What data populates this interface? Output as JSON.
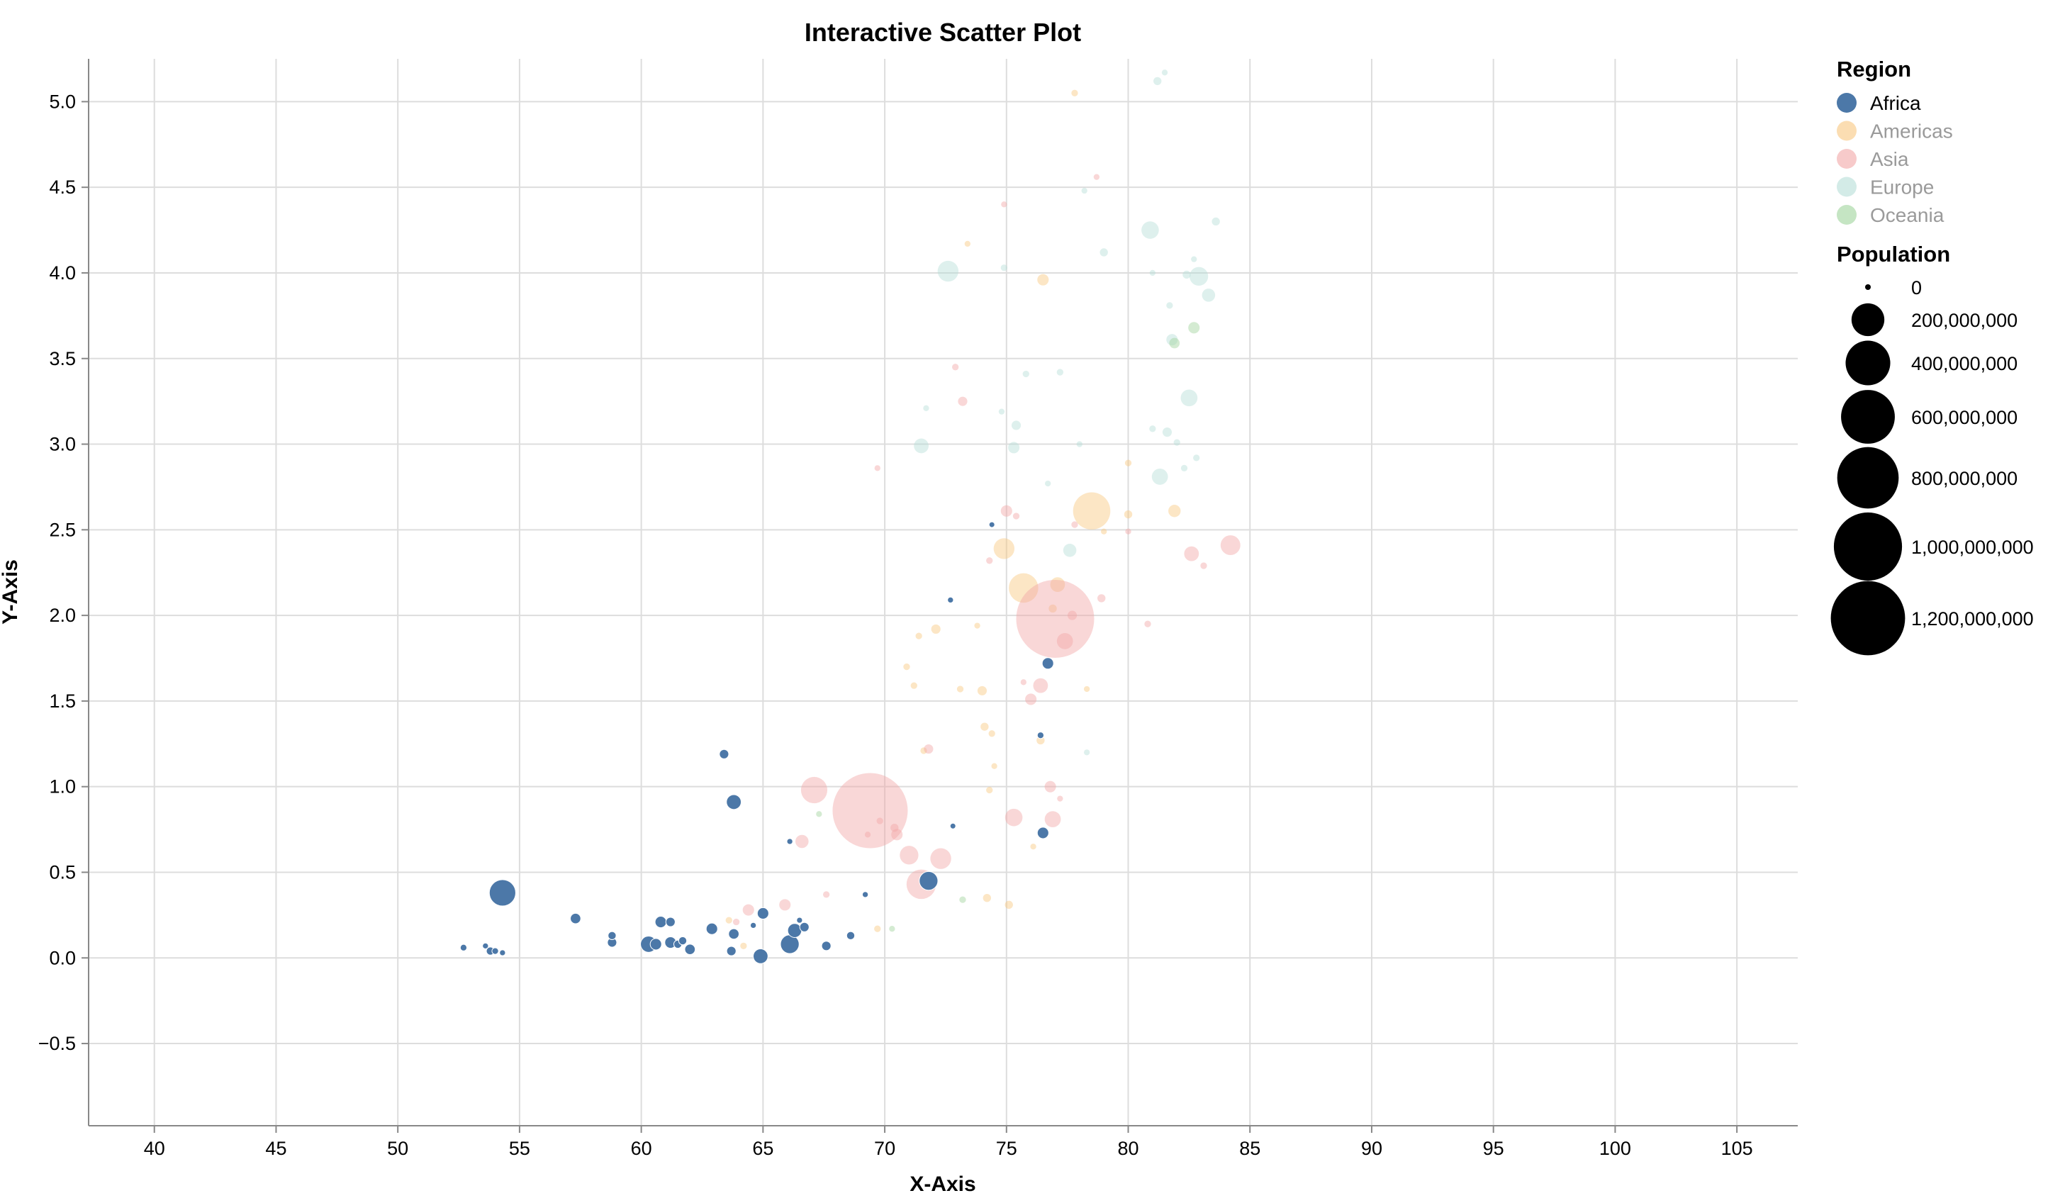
{
  "chart_data": {
    "type": "scatter",
    "title": "Interactive Scatter Plot",
    "xlabel": "X-Axis",
    "ylabel": "Y-Axis",
    "xlim": [
      37.3,
      107.5
    ],
    "ylim": [
      -0.98,
      5.25
    ],
    "xticks": [
      40,
      45,
      50,
      55,
      60,
      65,
      70,
      75,
      80,
      85,
      90,
      95,
      100,
      105
    ],
    "yticks": [
      -0.5,
      0.0,
      0.5,
      1.0,
      1.5,
      2.0,
      2.5,
      3.0,
      3.5,
      4.0,
      4.5,
      5.0
    ],
    "xtick_labels": [
      "40",
      "45",
      "50",
      "55",
      "60",
      "65",
      "70",
      "75",
      "80",
      "85",
      "90",
      "95",
      "100",
      "105"
    ],
    "ytick_labels": [
      "−0.5",
      "0.0",
      "0.5",
      "1.0",
      "1.5",
      "2.0",
      "2.5",
      "3.0",
      "3.5",
      "4.0",
      "4.5",
      "5.0"
    ],
    "grid": true,
    "legend": {
      "position": "right",
      "region_title": "Region",
      "regions": [
        {
          "name": "Africa",
          "color": "#4c78a8",
          "selected": true
        },
        {
          "name": "Americas",
          "color": "#f9c77f",
          "selected": false
        },
        {
          "name": "Asia",
          "color": "#f2a6a6",
          "selected": false
        },
        {
          "name": "Europe",
          "color": "#b5ddd7",
          "selected": false
        },
        {
          "name": "Oceania",
          "color": "#9fd39b",
          "selected": false
        }
      ],
      "size_title": "Population",
      "sizes": [
        {
          "label": "0",
          "value": 0
        },
        {
          "label": "200,000,000",
          "value": 200000000
        },
        {
          "label": "400,000,000",
          "value": 400000000
        },
        {
          "label": "600,000,000",
          "value": 600000000
        },
        {
          "label": "800,000,000",
          "value": 800000000
        },
        {
          "label": "1,000,000,000",
          "value": 1000000000
        },
        {
          "label": "1,200,000,000",
          "value": 1200000000
        }
      ]
    },
    "series": [
      {
        "name": "Africa",
        "points": [
          [
            52.7,
            0.06,
            10000000
          ],
          [
            53.6,
            0.07,
            8000000
          ],
          [
            53.8,
            0.04,
            15000000
          ],
          [
            54.0,
            0.04,
            10000000
          ],
          [
            54.3,
            0.03,
            8000000
          ],
          [
            54.3,
            0.38,
            160000000
          ],
          [
            57.3,
            0.23,
            25000000
          ],
          [
            58.8,
            0.13,
            15000000
          ],
          [
            58.8,
            0.09,
            20000000
          ],
          [
            60.3,
            0.08,
            60000000
          ],
          [
            60.6,
            0.08,
            30000000
          ],
          [
            60.8,
            0.21,
            30000000
          ],
          [
            61.2,
            0.21,
            20000000
          ],
          [
            61.2,
            0.09,
            30000000
          ],
          [
            61.5,
            0.08,
            15000000
          ],
          [
            61.7,
            0.1,
            15000000
          ],
          [
            62.0,
            0.05,
            25000000
          ],
          [
            62.9,
            0.17,
            30000000
          ],
          [
            63.4,
            1.19,
            20000000
          ],
          [
            63.7,
            0.04,
            20000000
          ],
          [
            63.8,
            0.14,
            25000000
          ],
          [
            63.8,
            0.91,
            50000000
          ],
          [
            64.6,
            0.19,
            8000000
          ],
          [
            65.0,
            0.26,
            30000000
          ],
          [
            64.9,
            0.01,
            50000000
          ],
          [
            66.1,
            0.68,
            8000000
          ],
          [
            66.1,
            0.08,
            80000000
          ],
          [
            66.3,
            0.16,
            45000000
          ],
          [
            66.5,
            0.22,
            8000000
          ],
          [
            66.7,
            0.18,
            20000000
          ],
          [
            67.6,
            0.07,
            20000000
          ],
          [
            68.6,
            0.13,
            15000000
          ],
          [
            69.2,
            0.37,
            8000000
          ],
          [
            71.8,
            0.45,
            80000000
          ],
          [
            72.7,
            2.09,
            8000000
          ],
          [
            72.8,
            0.77,
            5000000
          ],
          [
            74.4,
            2.53,
            5000000
          ],
          [
            76.4,
            1.3,
            10000000
          ],
          [
            76.5,
            0.73,
            30000000
          ],
          [
            76.7,
            1.72,
            30000000
          ]
        ]
      },
      {
        "name": "Americas",
        "points": [
          [
            63.6,
            0.22,
            10000000
          ],
          [
            64.2,
            0.07,
            10000000
          ],
          [
            69.7,
            0.17,
            10000000
          ],
          [
            70.9,
            1.7,
            10000000
          ],
          [
            71.2,
            1.59,
            10000000
          ],
          [
            71.4,
            1.88,
            10000000
          ],
          [
            71.6,
            1.21,
            10000000
          ],
          [
            72.1,
            1.92,
            20000000
          ],
          [
            73.1,
            1.57,
            10000000
          ],
          [
            73.4,
            4.17,
            8000000
          ],
          [
            73.8,
            1.94,
            8000000
          ],
          [
            74.0,
            1.56,
            20000000
          ],
          [
            74.1,
            1.35,
            15000000
          ],
          [
            74.2,
            0.35,
            15000000
          ],
          [
            74.3,
            0.98,
            10000000
          ],
          [
            74.4,
            1.31,
            10000000
          ],
          [
            74.5,
            1.12,
            8000000
          ],
          [
            74.9,
            2.39,
            100000000
          ],
          [
            75.1,
            0.31,
            15000000
          ],
          [
            75.7,
            2.16,
            200000000
          ],
          [
            76.1,
            0.65,
            8000000
          ],
          [
            76.4,
            1.27,
            15000000
          ],
          [
            76.5,
            3.96,
            30000000
          ],
          [
            76.9,
            2.04,
            15000000
          ],
          [
            77.1,
            2.18,
            50000000
          ],
          [
            77.8,
            5.05,
            10000000
          ],
          [
            78.3,
            1.57,
            8000000
          ],
          [
            78.5,
            2.61,
            320000000
          ],
          [
            79.0,
            2.49,
            8000000
          ],
          [
            80.0,
            2.59,
            15000000
          ],
          [
            80.0,
            2.89,
            10000000
          ],
          [
            81.9,
            2.61,
            35000000
          ]
        ]
      },
      {
        "name": "Asia",
        "points": [
          [
            63.9,
            0.21,
            10000000
          ],
          [
            64.4,
            0.28,
            30000000
          ],
          [
            65.9,
            0.31,
            30000000
          ],
          [
            66.6,
            0.68,
            40000000
          ],
          [
            67.1,
            0.98,
            160000000
          ],
          [
            67.6,
            0.37,
            10000000
          ],
          [
            69.3,
            0.72,
            8000000
          ],
          [
            69.4,
            0.86,
            1300000000
          ],
          [
            69.7,
            2.86,
            8000000
          ],
          [
            69.8,
            0.8,
            10000000
          ],
          [
            70.4,
            0.76,
            15000000
          ],
          [
            70.5,
            0.72,
            30000000
          ],
          [
            71.0,
            0.6,
            80000000
          ],
          [
            71.5,
            0.43,
            200000000
          ],
          [
            71.8,
            1.22,
            20000000
          ],
          [
            72.3,
            0.58,
            100000000
          ],
          [
            72.9,
            3.45,
            10000000
          ],
          [
            73.2,
            3.25,
            20000000
          ],
          [
            74.3,
            2.32,
            10000000
          ],
          [
            74.9,
            4.4,
            8000000
          ],
          [
            75.0,
            2.61,
            30000000
          ],
          [
            75.3,
            0.82,
            70000000
          ],
          [
            75.4,
            2.58,
            10000000
          ],
          [
            75.7,
            1.61,
            8000000
          ],
          [
            76.0,
            1.51,
            30000000
          ],
          [
            76.4,
            1.59,
            50000000
          ],
          [
            76.8,
            1.0,
            30000000
          ],
          [
            76.9,
            0.81,
            60000000
          ],
          [
            77.0,
            1.98,
            1400000000
          ],
          [
            77.2,
            0.93,
            8000000
          ],
          [
            77.4,
            1.85,
            60000000
          ],
          [
            77.7,
            2.0,
            20000000
          ],
          [
            77.8,
            2.53,
            10000000
          ],
          [
            78.7,
            4.56,
            8000000
          ],
          [
            78.9,
            2.1,
            15000000
          ],
          [
            80.0,
            2.49,
            8000000
          ],
          [
            80.8,
            1.95,
            10000000
          ],
          [
            82.6,
            2.36,
            50000000
          ],
          [
            83.1,
            2.29,
            10000000
          ],
          [
            84.2,
            2.41,
            90000000
          ]
        ]
      },
      {
        "name": "Europe",
        "points": [
          [
            71.5,
            2.99,
            50000000
          ],
          [
            71.7,
            3.21,
            8000000
          ],
          [
            72.6,
            4.01,
            100000000
          ],
          [
            74.8,
            3.19,
            8000000
          ],
          [
            74.9,
            4.03,
            10000000
          ],
          [
            75.3,
            2.98,
            30000000
          ],
          [
            75.4,
            3.11,
            20000000
          ],
          [
            75.8,
            3.41,
            10000000
          ],
          [
            76.7,
            2.77,
            8000000
          ],
          [
            77.2,
            3.42,
            10000000
          ],
          [
            77.6,
            2.38,
            40000000
          ],
          [
            78.0,
            3.0,
            8000000
          ],
          [
            78.2,
            4.48,
            8000000
          ],
          [
            78.3,
            1.2,
            8000000
          ],
          [
            79.0,
            4.12,
            15000000
          ],
          [
            80.9,
            4.25,
            70000000
          ],
          [
            81.0,
            3.09,
            10000000
          ],
          [
            81.0,
            4.0,
            8000000
          ],
          [
            81.2,
            5.12,
            15000000
          ],
          [
            81.3,
            2.81,
            60000000
          ],
          [
            81.5,
            5.17,
            8000000
          ],
          [
            81.6,
            3.07,
            20000000
          ],
          [
            81.7,
            3.81,
            10000000
          ],
          [
            81.8,
            3.61,
            30000000
          ],
          [
            82.0,
            3.01,
            10000000
          ],
          [
            82.3,
            2.86,
            10000000
          ],
          [
            82.4,
            3.99,
            15000000
          ],
          [
            82.5,
            3.27,
            65000000
          ],
          [
            82.7,
            4.08,
            8000000
          ],
          [
            82.8,
            2.92,
            10000000
          ],
          [
            82.9,
            3.98,
            80000000
          ],
          [
            83.3,
            3.87,
            40000000
          ],
          [
            83.6,
            4.3,
            15000000
          ]
        ]
      },
      {
        "name": "Oceania",
        "points": [
          [
            67.3,
            0.84,
            8000000
          ],
          [
            70.3,
            0.17,
            8000000
          ],
          [
            73.2,
            0.34,
            10000000
          ],
          [
            81.9,
            3.59,
            25000000
          ],
          [
            82.7,
            3.68,
            30000000
          ]
        ]
      }
    ]
  }
}
